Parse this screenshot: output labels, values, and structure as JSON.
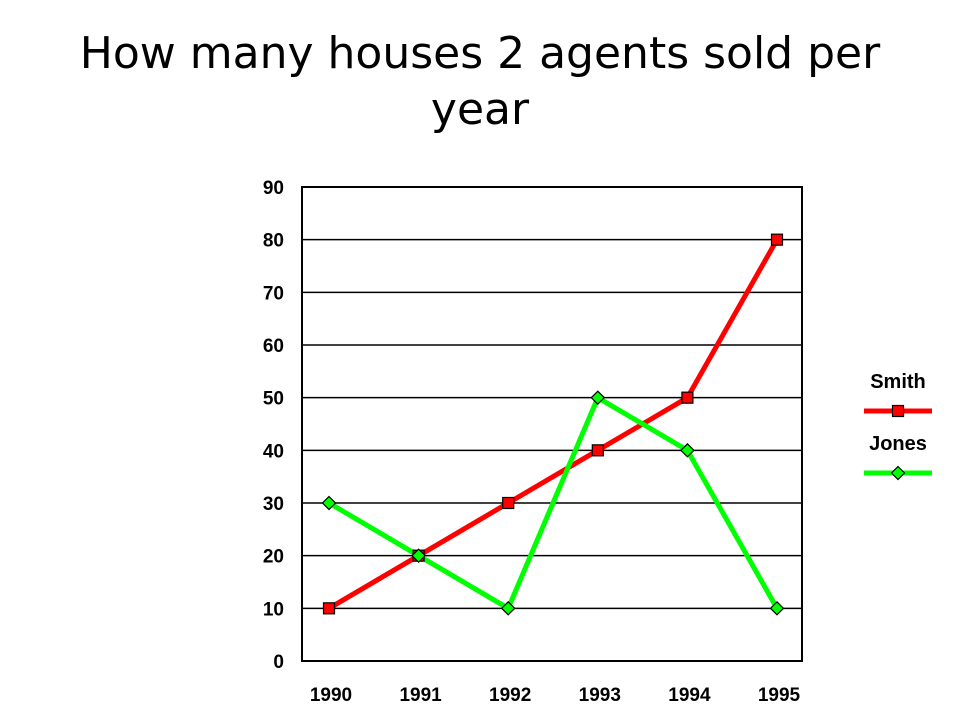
{
  "title": "How many houses 2 agents sold per year",
  "chart_data": {
    "type": "line",
    "title": "",
    "xlabel": "",
    "ylabel": "",
    "x": [
      "1990",
      "1991",
      "1992",
      "1993",
      "1994",
      "1995"
    ],
    "ylim": [
      0,
      90
    ],
    "yticks": [
      0,
      10,
      20,
      30,
      40,
      50,
      60,
      70,
      80,
      90
    ],
    "grid": true,
    "legend": "right",
    "series": [
      {
        "name": "Smith",
        "values": [
          10,
          20,
          30,
          40,
          50,
          80
        ],
        "color": "#ff0000",
        "marker": "square"
      },
      {
        "name": "Jones",
        "values": [
          30,
          20,
          10,
          50,
          40,
          10
        ],
        "color": "#00ff00",
        "marker": "diamond"
      }
    ]
  }
}
